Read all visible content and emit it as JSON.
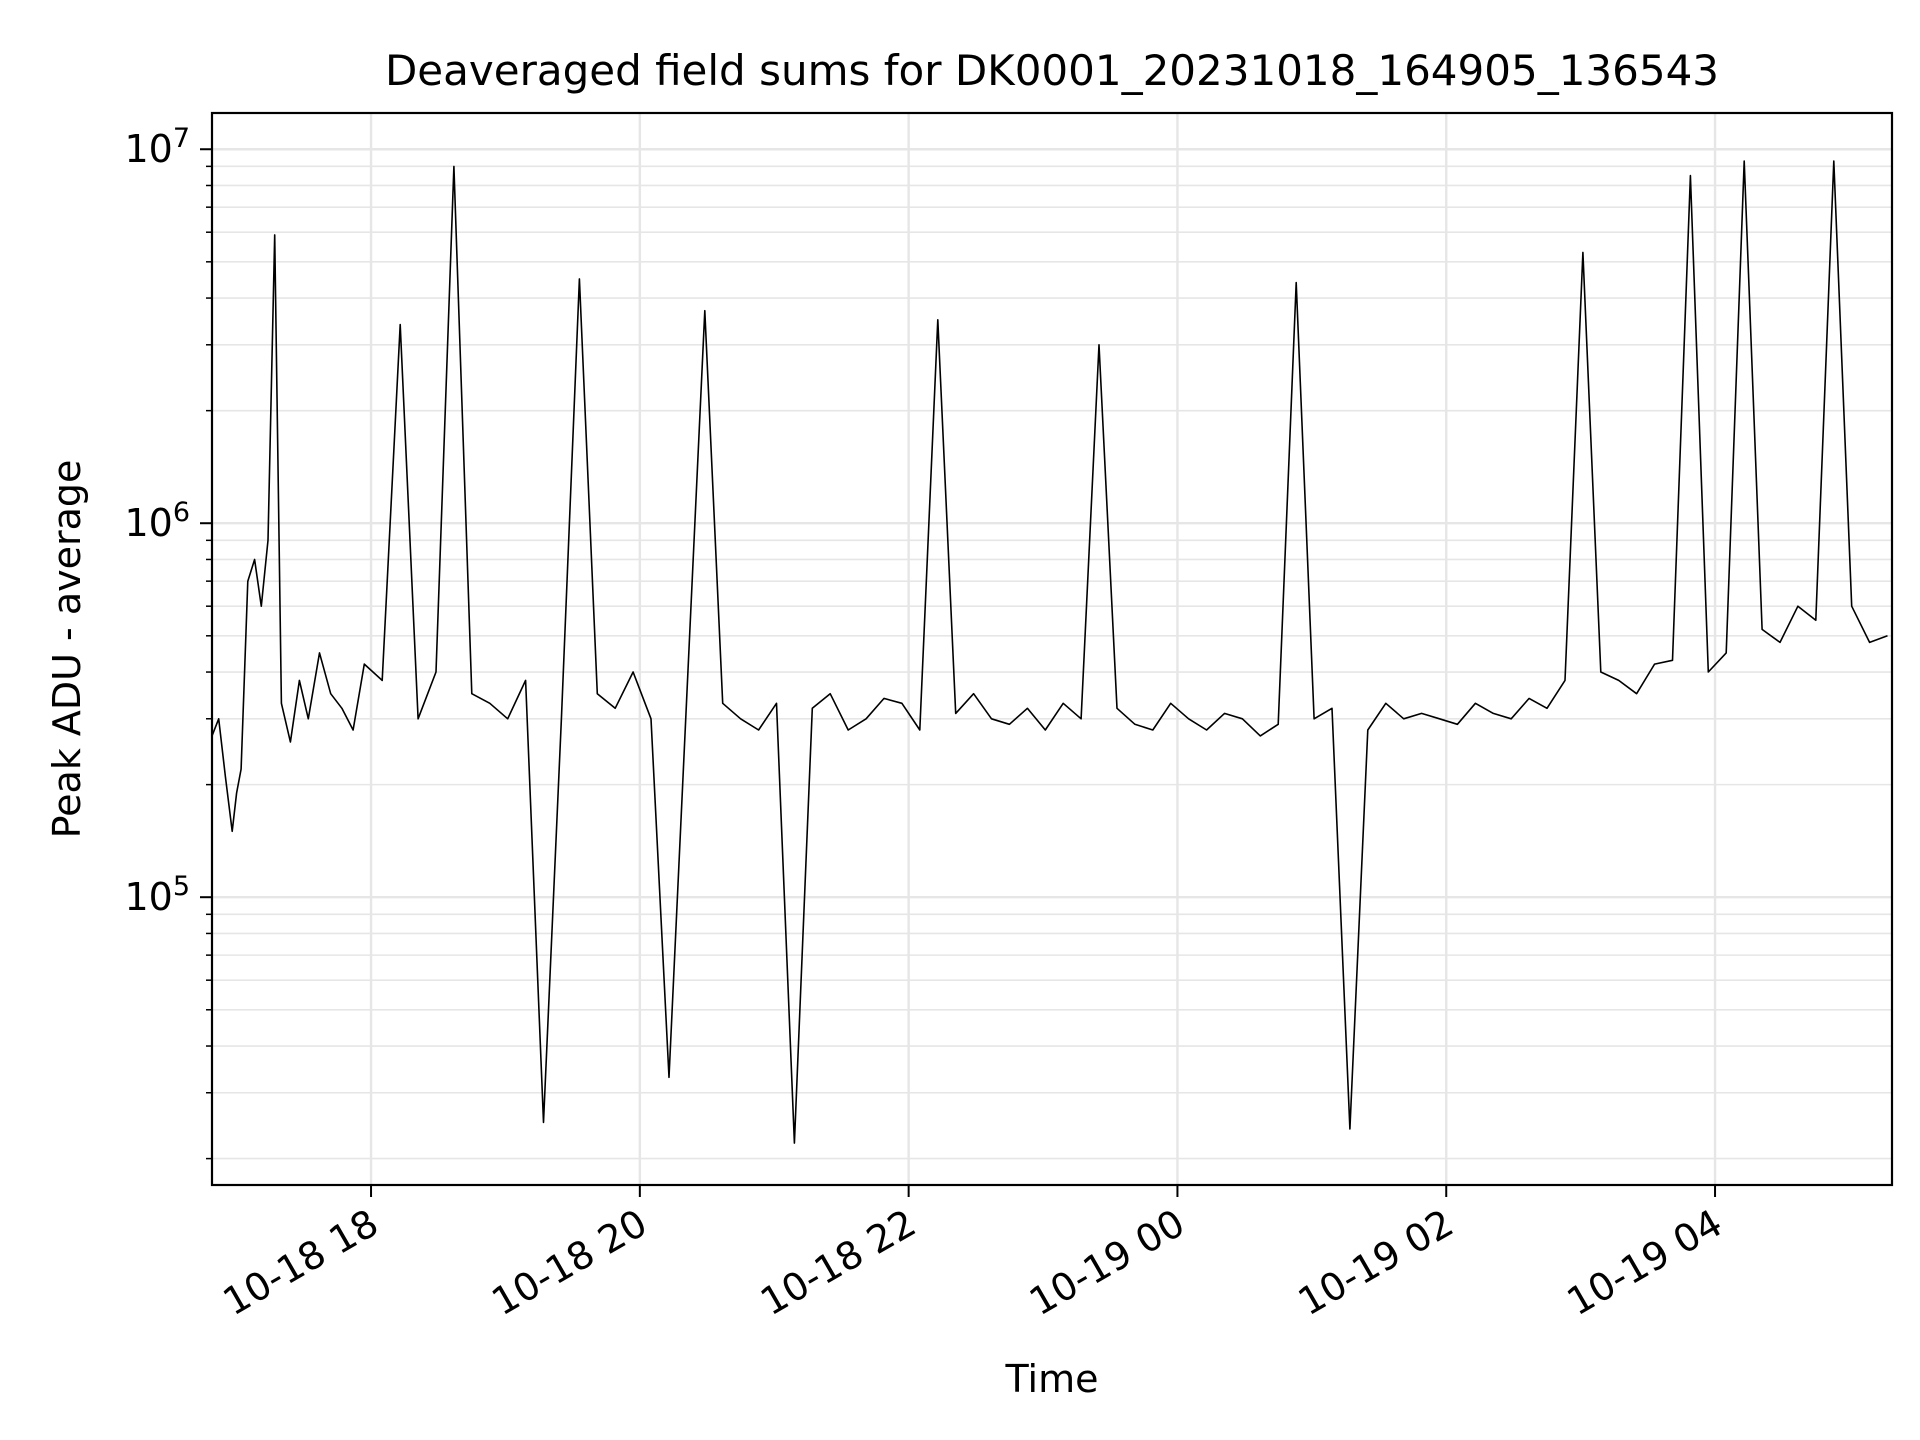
{
  "chart_data": {
    "type": "line",
    "title": "Deaveraged field sums for DK0001_20231018_164905_136543",
    "xlabel": "Time",
    "ylabel": "Peak ADU - average",
    "yscale": "log",
    "ylim": [
      17000,
      12500000
    ],
    "xlim": [
      "2023-10-18 16:49",
      "2023-10-19 05:19"
    ],
    "grid": true,
    "line_color": "#000000",
    "x_ticks": [
      "10-18 18",
      "10-18 20",
      "10-18 22",
      "10-19 00",
      "10-19 02",
      "10-19 04"
    ],
    "y_ticks": [
      {
        "base": "10",
        "exp": "5",
        "value": 100000
      },
      {
        "base": "10",
        "exp": "6",
        "value": 1000000
      },
      {
        "base": "10",
        "exp": "7",
        "value": 10000000
      }
    ],
    "series": [
      {
        "x": [
          "2023-10-18 16:49",
          "2023-10-18 16:52",
          "2023-10-18 16:55",
          "2023-10-18 16:58",
          "2023-10-18 17:00",
          "2023-10-18 17:02",
          "2023-10-18 17:05",
          "2023-10-18 17:08",
          "2023-10-18 17:11",
          "2023-10-18 17:14",
          "2023-10-18 17:17",
          "2023-10-18 17:20",
          "2023-10-18 17:24",
          "2023-10-18 17:28",
          "2023-10-18 17:32",
          "2023-10-18 17:37",
          "2023-10-18 17:42",
          "2023-10-18 17:47",
          "2023-10-18 17:52",
          "2023-10-18 17:57",
          "2023-10-18 18:05",
          "2023-10-18 18:13",
          "2023-10-18 18:21",
          "2023-10-18 18:29",
          "2023-10-18 18:37",
          "2023-10-18 18:45",
          "2023-10-18 18:53",
          "2023-10-18 19:01",
          "2023-10-18 19:09",
          "2023-10-18 19:17",
          "2023-10-18 19:25",
          "2023-10-18 19:33",
          "2023-10-18 19:41",
          "2023-10-18 19:49",
          "2023-10-18 19:57",
          "2023-10-18 20:05",
          "2023-10-18 20:13",
          "2023-10-18 20:21",
          "2023-10-18 20:29",
          "2023-10-18 20:37",
          "2023-10-18 20:45",
          "2023-10-18 20:53",
          "2023-10-18 21:01",
          "2023-10-18 21:09",
          "2023-10-18 21:17",
          "2023-10-18 21:25",
          "2023-10-18 21:33",
          "2023-10-18 21:41",
          "2023-10-18 21:49",
          "2023-10-18 21:57",
          "2023-10-18 22:05",
          "2023-10-18 22:13",
          "2023-10-18 22:21",
          "2023-10-18 22:29",
          "2023-10-18 22:37",
          "2023-10-18 22:45",
          "2023-10-18 22:53",
          "2023-10-18 23:01",
          "2023-10-18 23:09",
          "2023-10-18 23:17",
          "2023-10-18 23:25",
          "2023-10-18 23:33",
          "2023-10-18 23:41",
          "2023-10-18 23:49",
          "2023-10-18 23:57",
          "2023-10-19 00:05",
          "2023-10-19 00:13",
          "2023-10-19 00:21",
          "2023-10-19 00:29",
          "2023-10-19 00:37",
          "2023-10-19 00:45",
          "2023-10-19 00:53",
          "2023-10-19 01:01",
          "2023-10-19 01:09",
          "2023-10-19 01:17",
          "2023-10-19 01:25",
          "2023-10-19 01:33",
          "2023-10-19 01:41",
          "2023-10-19 01:49",
          "2023-10-19 01:57",
          "2023-10-19 02:05",
          "2023-10-19 02:13",
          "2023-10-19 02:21",
          "2023-10-19 02:29",
          "2023-10-19 02:37",
          "2023-10-19 02:45",
          "2023-10-19 02:53",
          "2023-10-19 03:01",
          "2023-10-19 03:09",
          "2023-10-19 03:17",
          "2023-10-19 03:25",
          "2023-10-19 03:33",
          "2023-10-19 03:41",
          "2023-10-19 03:49",
          "2023-10-19 03:57",
          "2023-10-19 04:05",
          "2023-10-19 04:13",
          "2023-10-19 04:21",
          "2023-10-19 04:29",
          "2023-10-19 04:37",
          "2023-10-19 04:45",
          "2023-10-19 04:53",
          "2023-10-19 05:01",
          "2023-10-19 05:09",
          "2023-10-19 05:17"
        ],
        "y": [
          270000,
          300000,
          210000,
          150000,
          190000,
          220000,
          700000,
          800000,
          600000,
          900000,
          5900000,
          330000,
          260000,
          380000,
          300000,
          450000,
          350000,
          320000,
          280000,
          420000,
          380000,
          3400000,
          300000,
          400000,
          9000000,
          350000,
          330000,
          300000,
          380000,
          25000,
          300000,
          4500000,
          350000,
          320000,
          400000,
          300000,
          33000,
          350000,
          3700000,
          330000,
          300000,
          280000,
          330000,
          22000,
          320000,
          350000,
          280000,
          300000,
          340000,
          330000,
          280000,
          3500000,
          310000,
          350000,
          300000,
          290000,
          320000,
          280000,
          330000,
          300000,
          3000000,
          320000,
          290000,
          280000,
          330000,
          300000,
          280000,
          310000,
          300000,
          270000,
          290000,
          4400000,
          300000,
          320000,
          24000,
          280000,
          330000,
          300000,
          310000,
          300000,
          290000,
          330000,
          310000,
          300000,
          340000,
          320000,
          380000,
          5300000,
          400000,
          380000,
          350000,
          420000,
          430000,
          8500000,
          400000,
          450000,
          9300000,
          520000,
          480000,
          600000,
          550000,
          9300000,
          600000,
          480000,
          500000
        ]
      }
    ]
  }
}
